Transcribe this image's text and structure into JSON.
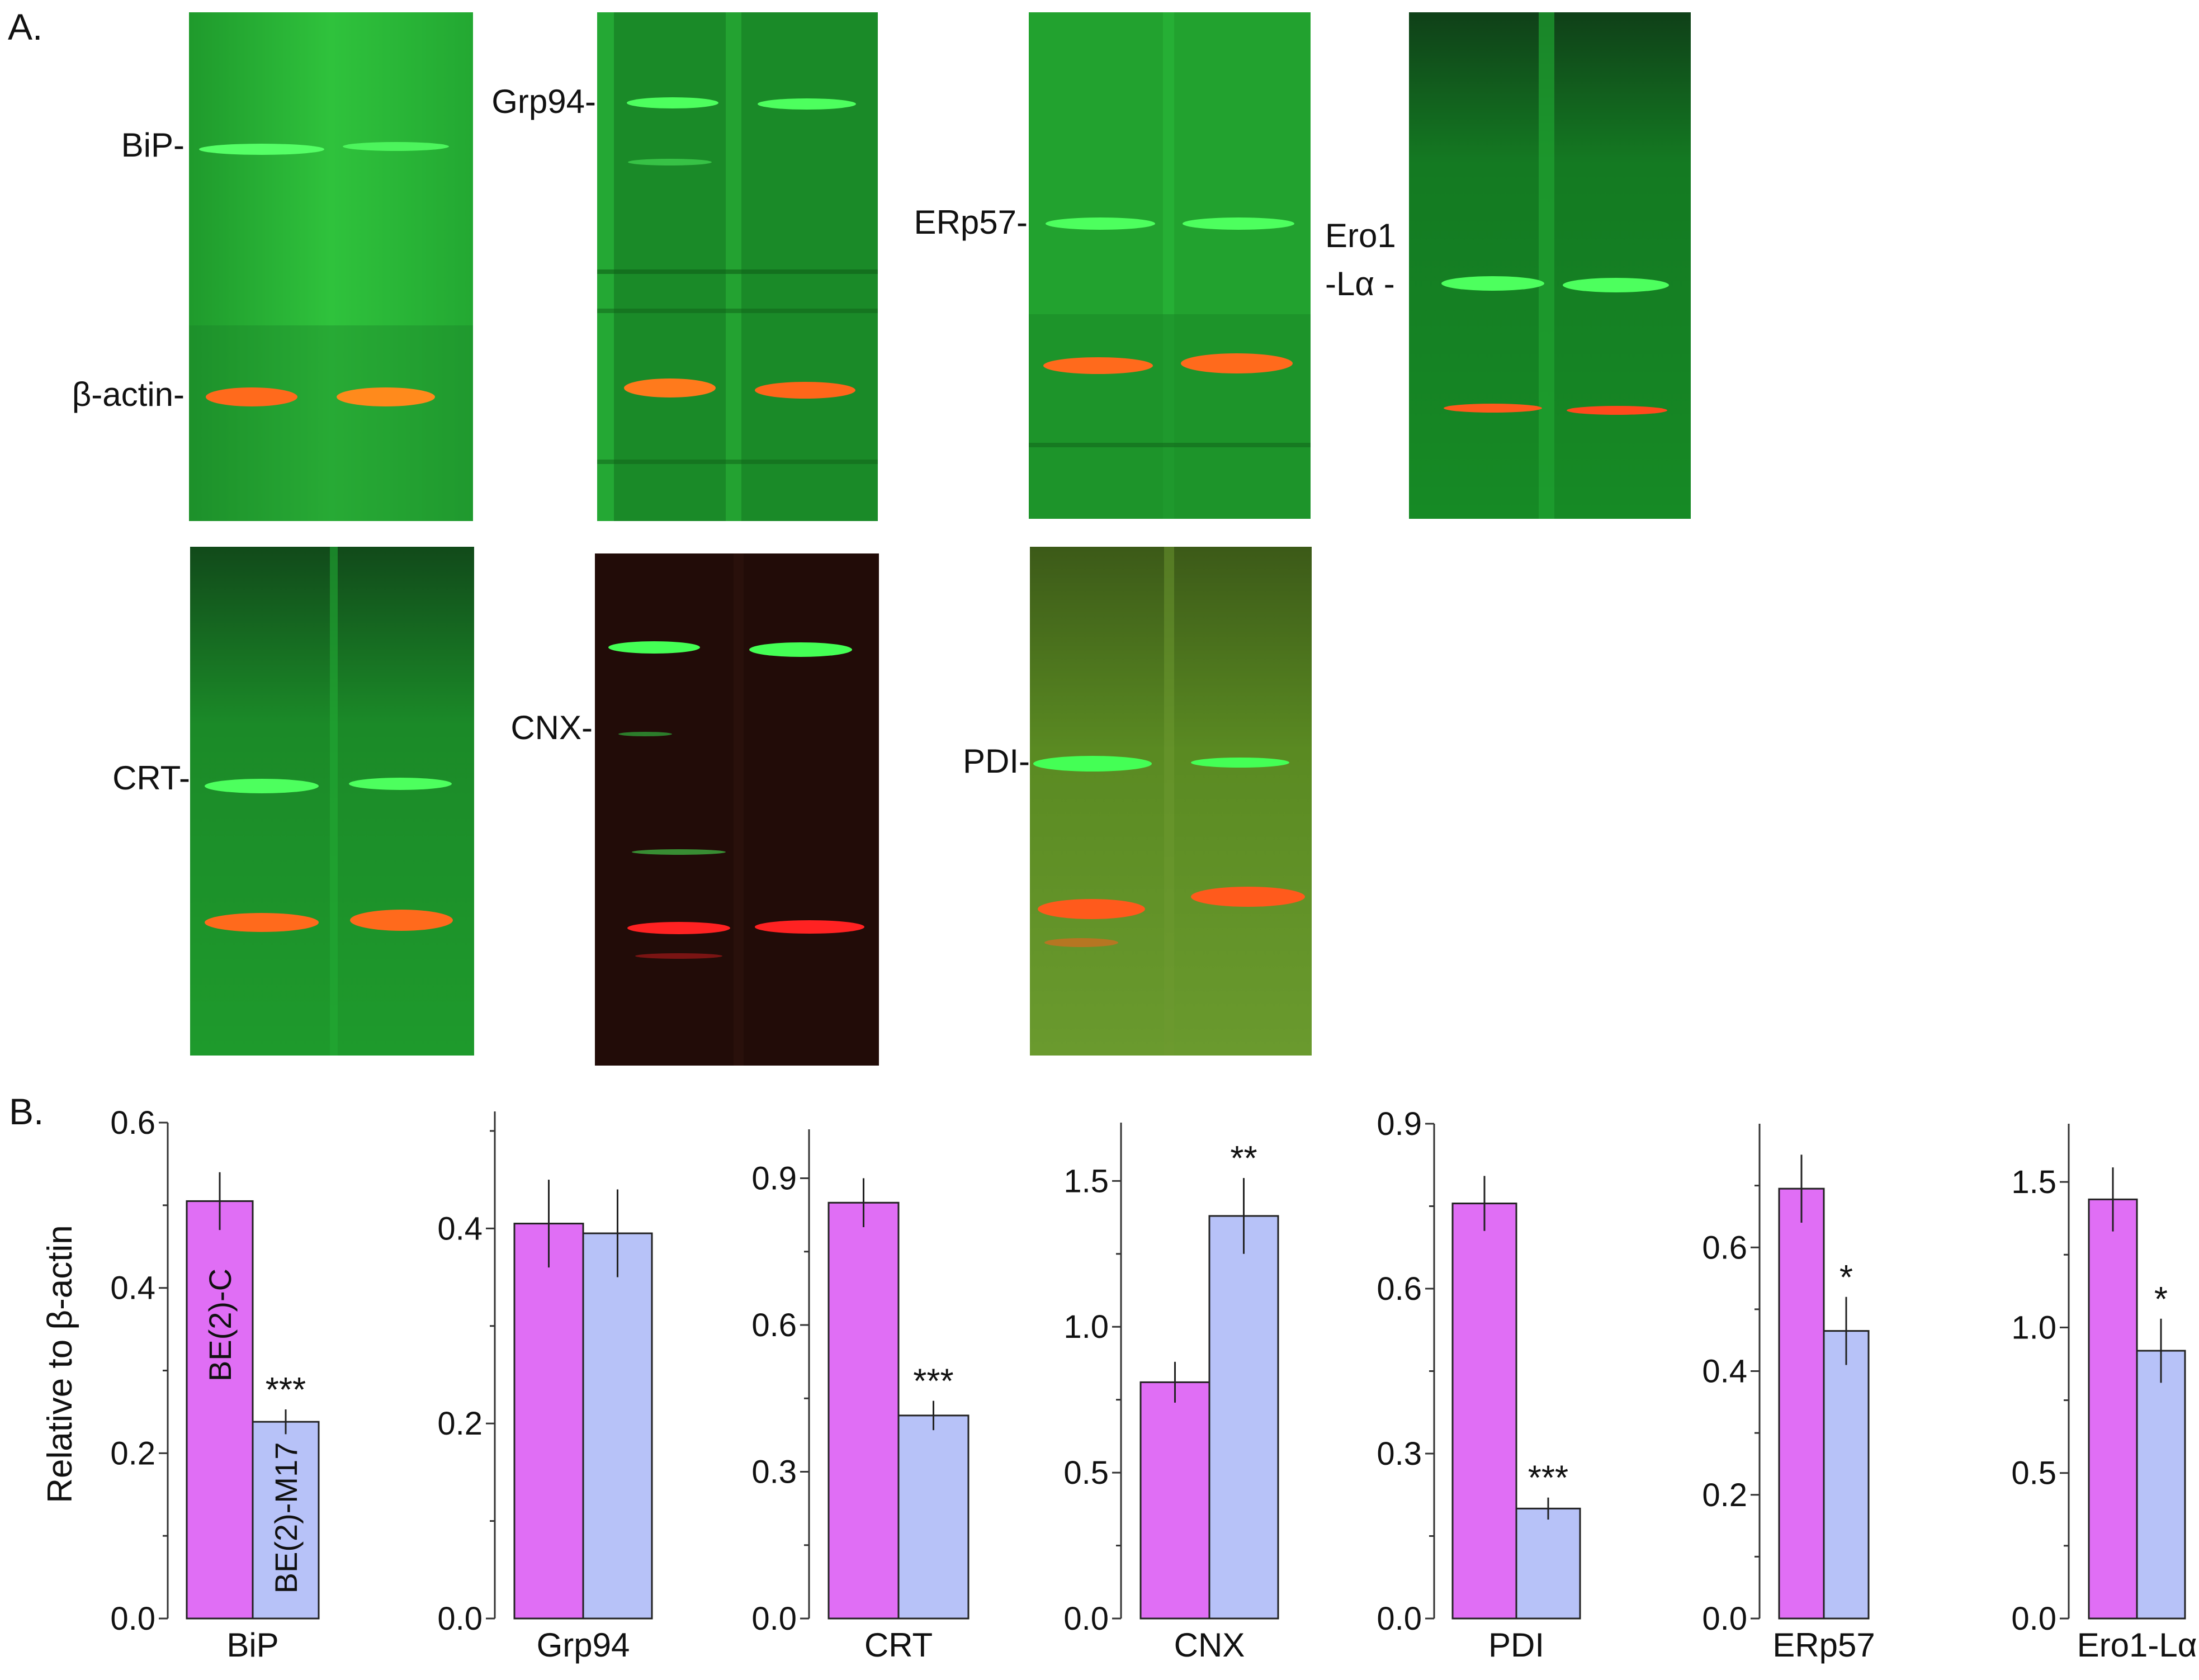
{
  "panels": {
    "a": "A.",
    "b": "B."
  },
  "colors": {
    "be2c": "#e06ef5",
    "be2m17": "#b7c2f8",
    "bg_green": "#25b234",
    "band_green": "#44ff55",
    "band_orange": "#ff6a1c",
    "bg_dark": "#200c08",
    "band_red": "#ff2222",
    "bg_olive": "#4f7f20"
  },
  "blots": [
    {
      "id": "bip",
      "labels": [
        "BiP",
        "β-actin"
      ]
    },
    {
      "id": "grp94",
      "labels": [
        "Grp94"
      ]
    },
    {
      "id": "erp57",
      "labels": [
        "ERp57"
      ]
    },
    {
      "id": "ero1",
      "labels": [
        "Ero1",
        "-Lα"
      ]
    },
    {
      "id": "crt",
      "labels": [
        "CRT"
      ]
    },
    {
      "id": "cnx",
      "labels": [
        "CNX"
      ]
    },
    {
      "id": "pdi",
      "labels": [
        "PDI"
      ]
    }
  ],
  "chart_data": [
    {
      "type": "bar",
      "title": "",
      "xlabel": "BiP",
      "ylabel": "Relative to β-actin",
      "categories": [
        "BE(2)-C",
        "BE(2)-M17"
      ],
      "series": [
        {
          "name": "BiP",
          "values": [
            0.505,
            0.238
          ],
          "errors": [
            0.035,
            0.015
          ]
        }
      ],
      "bar_labels": [
        "BE(2)-C",
        "BE(2)-M17"
      ],
      "significance": [
        "",
        "***"
      ],
      "ylim": [
        0,
        0.6
      ],
      "ticks": [
        {
          "v": 0.0,
          "label": "0.0"
        },
        {
          "v": 0.2,
          "label": "0.2"
        },
        {
          "v": 0.4,
          "label": "0.4"
        },
        {
          "v": 0.6,
          "label": "0.6"
        }
      ],
      "minor_ticks": [
        0.1,
        0.3,
        0.5
      ]
    },
    {
      "type": "bar",
      "xlabel": "Grp94",
      "categories": [
        "BE(2)-C",
        "BE(2)-M17"
      ],
      "series": [
        {
          "name": "Grp94",
          "values": [
            0.405,
            0.395
          ],
          "errors": [
            0.045,
            0.045
          ]
        }
      ],
      "significance": [
        "",
        ""
      ],
      "ylim": [
        0,
        0.52
      ],
      "ticks": [
        {
          "v": 0.0,
          "label": "0.0"
        },
        {
          "v": 0.2,
          "label": "0.2"
        },
        {
          "v": 0.4,
          "label": "0.4"
        }
      ],
      "minor_ticks": [
        0.1,
        0.3,
        0.5
      ]
    },
    {
      "type": "bar",
      "xlabel": "CRT",
      "categories": [
        "BE(2)-C",
        "BE(2)-M17"
      ],
      "series": [
        {
          "name": "CRT",
          "values": [
            0.85,
            0.415
          ],
          "errors": [
            0.05,
            0.03
          ]
        }
      ],
      "significance": [
        "",
        "***"
      ],
      "ylim": [
        0,
        1.0
      ],
      "ticks": [
        {
          "v": 0.0,
          "label": "0.0"
        },
        {
          "v": 0.3,
          "label": "0.3"
        },
        {
          "v": 0.6,
          "label": "0.6"
        },
        {
          "v": 0.9,
          "label": "0.9"
        }
      ],
      "minor_ticks": [
        0.15,
        0.45,
        0.75
      ]
    },
    {
      "type": "bar",
      "xlabel": "CNX",
      "categories": [
        "BE(2)-C",
        "BE(2)-M17"
      ],
      "series": [
        {
          "name": "CNX",
          "values": [
            0.81,
            1.38
          ],
          "errors": [
            0.07,
            0.13
          ]
        }
      ],
      "significance": [
        "",
        "**"
      ],
      "ylim": [
        0,
        1.7
      ],
      "ticks": [
        {
          "v": 0.0,
          "label": "0.0"
        },
        {
          "v": 0.5,
          "label": "0.5"
        },
        {
          "v": 1.0,
          "label": "1.0"
        },
        {
          "v": 1.5,
          "label": "1.5"
        }
      ],
      "minor_ticks": [
        0.25,
        0.75,
        1.25
      ]
    },
    {
      "type": "bar",
      "xlabel": "PDI",
      "categories": [
        "BE(2)-C",
        "BE(2)-M17"
      ],
      "series": [
        {
          "name": "PDI",
          "values": [
            0.755,
            0.2
          ],
          "errors": [
            0.05,
            0.02
          ]
        }
      ],
      "significance": [
        "",
        "***"
      ],
      "ylim": [
        0,
        0.9
      ],
      "ticks": [
        {
          "v": 0.0,
          "label": "0.0"
        },
        {
          "v": 0.3,
          "label": "0.3"
        },
        {
          "v": 0.6,
          "label": "0.6"
        },
        {
          "v": 0.9,
          "label": "0.9"
        }
      ],
      "minor_ticks": [
        0.15,
        0.45,
        0.75
      ]
    },
    {
      "type": "bar",
      "xlabel": "ERp57",
      "categories": [
        "BE(2)-C",
        "BE(2)-M17"
      ],
      "series": [
        {
          "name": "ERp57",
          "values": [
            0.695,
            0.465
          ],
          "errors": [
            0.055,
            0.055
          ]
        }
      ],
      "significance": [
        "",
        "*"
      ],
      "ylim": [
        0,
        0.8
      ],
      "ticks": [
        {
          "v": 0.0,
          "label": "0.0"
        },
        {
          "v": 0.2,
          "label": "0.2"
        },
        {
          "v": 0.4,
          "label": "0.4"
        },
        {
          "v": 0.6,
          "label": "0.6"
        }
      ],
      "minor_ticks": [
        0.1,
        0.3,
        0.5,
        0.7
      ]
    },
    {
      "type": "bar",
      "xlabel": "Ero1-Lα",
      "categories": [
        "BE(2)-C",
        "BE(2)-M17"
      ],
      "series": [
        {
          "name": "Ero1-Lα",
          "values": [
            1.44,
            0.92
          ],
          "errors": [
            0.11,
            0.11
          ]
        }
      ],
      "significance": [
        "",
        "*"
      ],
      "ylim": [
        0,
        1.7
      ],
      "ticks": [
        {
          "v": 0.0,
          "label": "0.0"
        },
        {
          "v": 0.5,
          "label": "0.5"
        },
        {
          "v": 1.0,
          "label": "1.0"
        },
        {
          "v": 1.5,
          "label": "1.5"
        }
      ],
      "minor_ticks": [
        0.25,
        0.75,
        1.25
      ]
    }
  ]
}
